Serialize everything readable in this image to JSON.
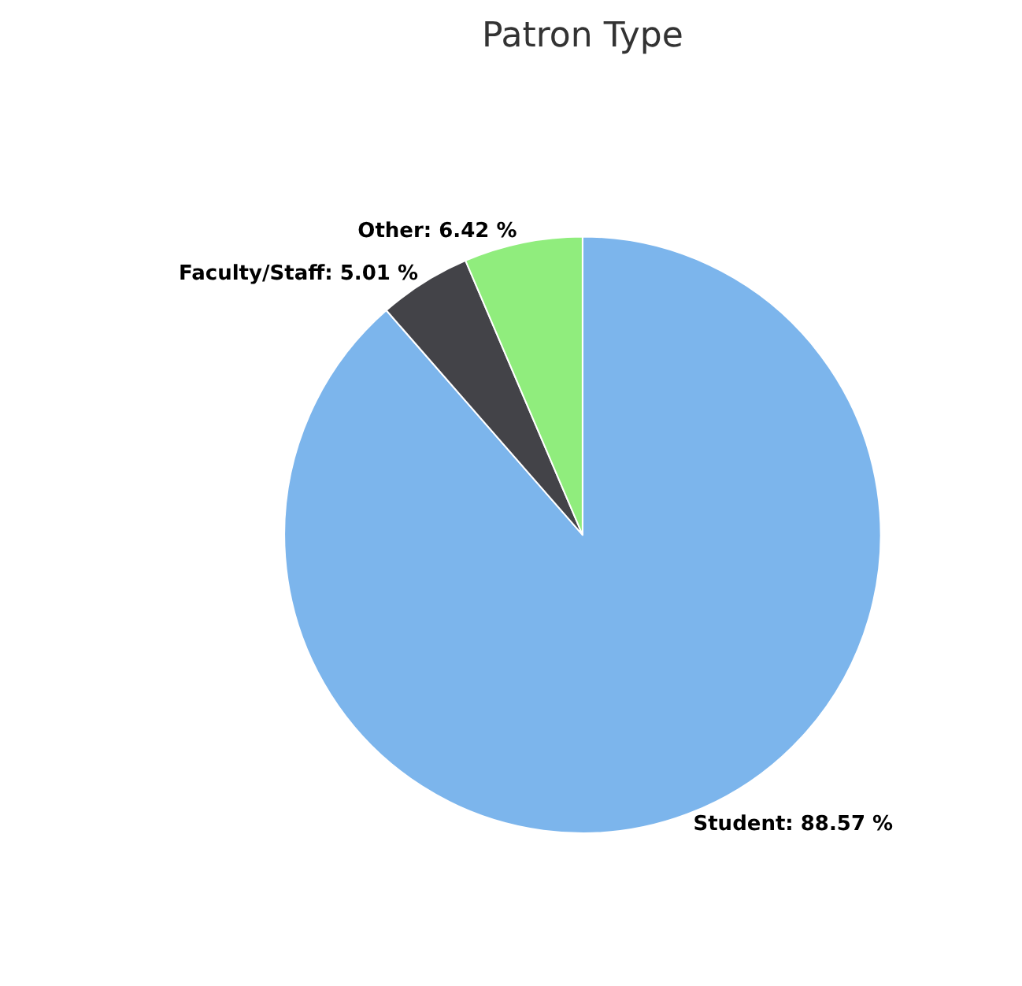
{
  "chart_data": {
    "type": "pie",
    "title": "Patron Type",
    "categories": [
      "Student",
      "Faculty/Staff",
      "Other"
    ],
    "values": [
      88.57,
      5.01,
      6.42
    ],
    "colors": [
      "#7cb5ec",
      "#434348",
      "#90ed7d"
    ],
    "value_labels": [
      "88.57 %",
      "5.01 %",
      "6.42 %"
    ],
    "legend": false
  }
}
